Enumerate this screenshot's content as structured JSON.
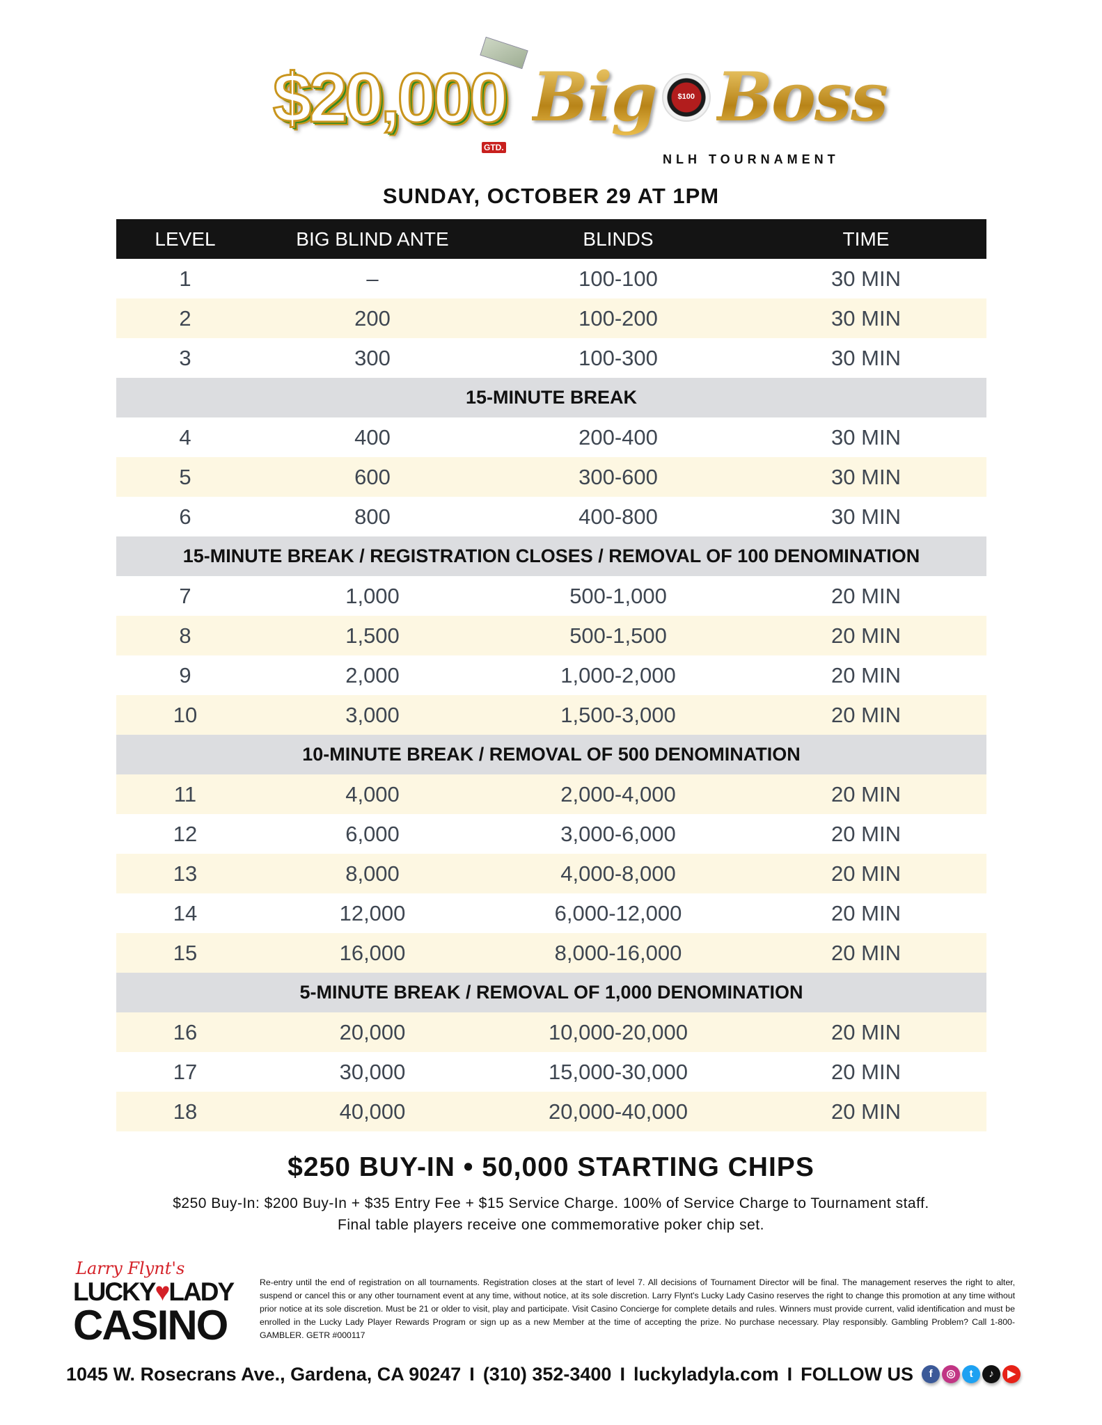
{
  "hero": {
    "amount": "$20,000",
    "gtd": "GTD.",
    "title": "Big Boss",
    "title_first": "Big",
    "title_second": "Boss",
    "chip_value": "$100",
    "subtitle": "NLH TOURNAMENT",
    "date": "SUNDAY, OCTOBER 29 AT 1PM"
  },
  "table": {
    "headers": [
      "LEVEL",
      "BIG BLIND ANTE",
      "BLINDS",
      "TIME"
    ],
    "rows": [
      {
        "level": "1",
        "ante": "–",
        "blinds": "100-100",
        "time": "30 MIN",
        "shade": "white"
      },
      {
        "level": "2",
        "ante": "200",
        "blinds": "100-200",
        "time": "30 MIN",
        "shade": "cream"
      },
      {
        "level": "3",
        "ante": "300",
        "blinds": "100-300",
        "time": "30 MIN",
        "shade": "white"
      },
      {
        "break": "15-MINUTE BREAK"
      },
      {
        "level": "4",
        "ante": "400",
        "blinds": "200-400",
        "time": "30 MIN",
        "shade": "white"
      },
      {
        "level": "5",
        "ante": "600",
        "blinds": "300-600",
        "time": "30 MIN",
        "shade": "cream"
      },
      {
        "level": "6",
        "ante": "800",
        "blinds": "400-800",
        "time": "30 MIN",
        "shade": "white"
      },
      {
        "break": "15-MINUTE BREAK / REGISTRATION CLOSES / REMOVAL OF 100 DENOMINATION"
      },
      {
        "level": "7",
        "ante": "1,000",
        "blinds": "500-1,000",
        "time": "20 MIN",
        "shade": "white"
      },
      {
        "level": "8",
        "ante": "1,500",
        "blinds": "500-1,500",
        "time": "20 MIN",
        "shade": "cream"
      },
      {
        "level": "9",
        "ante": "2,000",
        "blinds": "1,000-2,000",
        "time": "20 MIN",
        "shade": "white"
      },
      {
        "level": "10",
        "ante": "3,000",
        "blinds": "1,500-3,000",
        "time": "20 MIN",
        "shade": "cream"
      },
      {
        "break": "10-MINUTE BREAK / REMOVAL OF 500 DENOMINATION"
      },
      {
        "level": "11",
        "ante": "4,000",
        "blinds": "2,000-4,000",
        "time": "20 MIN",
        "shade": "cream"
      },
      {
        "level": "12",
        "ante": "6,000",
        "blinds": "3,000-6,000",
        "time": "20 MIN",
        "shade": "white"
      },
      {
        "level": "13",
        "ante": "8,000",
        "blinds": "4,000-8,000",
        "time": "20 MIN",
        "shade": "cream"
      },
      {
        "level": "14",
        "ante": "12,000",
        "blinds": "6,000-12,000",
        "time": "20 MIN",
        "shade": "white"
      },
      {
        "level": "15",
        "ante": "16,000",
        "blinds": "8,000-16,000",
        "time": "20 MIN",
        "shade": "cream"
      },
      {
        "break": "5-MINUTE BREAK / REMOVAL OF 1,000 DENOMINATION"
      },
      {
        "level": "16",
        "ante": "20,000",
        "blinds": "10,000-20,000",
        "time": "20 MIN",
        "shade": "cream"
      },
      {
        "level": "17",
        "ante": "30,000",
        "blinds": "15,000-30,000",
        "time": "20 MIN",
        "shade": "white"
      },
      {
        "level": "18",
        "ante": "40,000",
        "blinds": "20,000-40,000",
        "time": "20 MIN",
        "shade": "cream"
      }
    ]
  },
  "buyin": {
    "headline": "$250 BUY-IN • 50,000 STARTING CHIPS",
    "detail_1": "$250 Buy-In: $200 Buy-In + $35 Entry Fee + $15 Service Charge. 100% of Service Charge to Tournament staff.",
    "detail_2": "Final table players receive one commemorative poker chip set."
  },
  "logo": {
    "script": "Larry Flynt's",
    "lucky": "LUCKY",
    "lady": "LADY",
    "casino": "CASINO"
  },
  "fine_print": "Re-entry until the end of registration on all tournaments. Registration closes at the start of level 7. All decisions of Tournament Director will be final. The management reserves the right to alter, suspend or cancel this or any other tournament event at any time, without notice, at its sole discretion. Larry Flynt's Lucky Lady Casino reserves the right to change this promotion at any time without prior notice at its sole discretion. Must be 21 or older to visit, play and participate. Visit Casino Concierge for complete details and rules. Winners must provide current, valid identification and must be enrolled in the Lucky Lady Player Rewards Program or sign up as a new Member at the time of accepting the prize. No purchase necessary. Play responsibly. Gambling Problem? Call 1-800-GAMBLER. GETR #000117",
  "footer": {
    "address": "1045 W. Rosecrans Ave., Gardena, CA 90247",
    "phone": "(310) 352-3400",
    "website": "luckyladyla.com",
    "follow": "FOLLOW US",
    "separator": "I",
    "social": [
      {
        "icon": "facebook-icon",
        "glyph": "f",
        "color": "#3b5998"
      },
      {
        "icon": "instagram-icon",
        "glyph": "◎",
        "color": "#c13584"
      },
      {
        "icon": "twitter-icon",
        "glyph": "t",
        "color": "#1da1f2"
      },
      {
        "icon": "tiktok-icon",
        "glyph": "♪",
        "color": "#111111"
      },
      {
        "icon": "youtube-icon",
        "glyph": "▶",
        "color": "#e62117"
      }
    ]
  },
  "colors": {
    "header_bg": "#141414",
    "cream_row": "#fdf7e2",
    "break_row": "#dcdde0",
    "gold": "#d9a82e",
    "red": "#d42027"
  }
}
